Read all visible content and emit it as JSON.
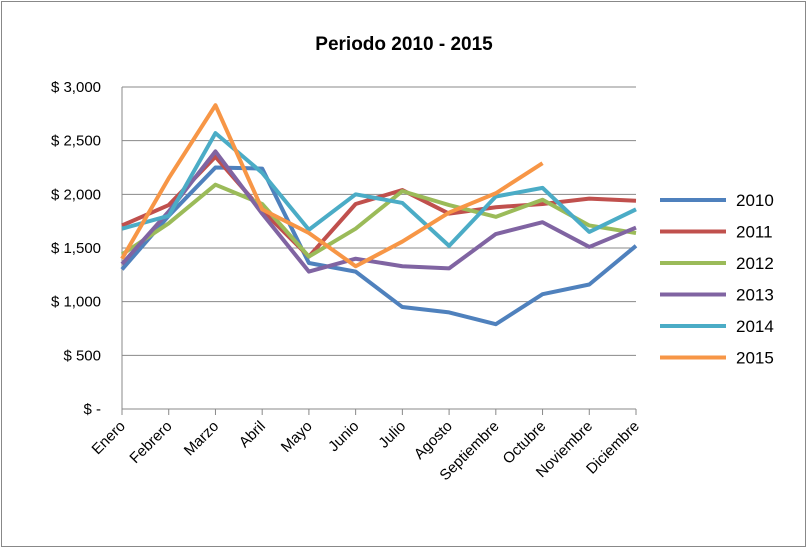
{
  "chart_data": {
    "type": "line",
    "title": "Periodo 2010 - 2015",
    "categories": [
      "Enero",
      "Febrero",
      "Marzo",
      "Abril",
      "Mayo",
      "Junio",
      "Julio",
      "Agosto",
      "Septiembre",
      "Octubre",
      "Noviembre",
      "Diciembre"
    ],
    "series": [
      {
        "name": "2010",
        "color": "#4f81bd",
        "values": [
          1300,
          1800,
          2250,
          2240,
          1360,
          1280,
          950,
          900,
          790,
          1070,
          1160,
          1520
        ]
      },
      {
        "name": "2011",
        "color": "#c0504d",
        "values": [
          1710,
          1900,
          2350,
          1850,
          1420,
          1910,
          2040,
          1820,
          1880,
          1910,
          1960,
          1940
        ]
      },
      {
        "name": "2012",
        "color": "#9bbb59",
        "values": [
          1440,
          1730,
          2090,
          1910,
          1420,
          1680,
          2030,
          1900,
          1790,
          1950,
          1710,
          1640
        ]
      },
      {
        "name": "2013",
        "color": "#8064a2",
        "values": [
          1350,
          1840,
          2400,
          1820,
          1280,
          1400,
          1330,
          1310,
          1630,
          1740,
          1510,
          1690
        ]
      },
      {
        "name": "2014",
        "color": "#4bacc6",
        "values": [
          1680,
          1800,
          2570,
          2200,
          1670,
          2000,
          1920,
          1520,
          1980,
          2060,
          1650,
          1860
        ]
      },
      {
        "name": "2015",
        "color": "#f79646",
        "values": [
          1400,
          2150,
          2830,
          1860,
          1640,
          1330,
          1560,
          1830,
          2010,
          2290,
          null,
          null
        ]
      }
    ],
    "ylim": [
      0,
      3000
    ],
    "yticks": [
      {
        "value": 0,
        "label": "$ -"
      },
      {
        "value": 500,
        "label": "$ 500"
      },
      {
        "value": 1000,
        "label": "$ 1,000"
      },
      {
        "value": 1500,
        "label": "$ 1,500"
      },
      {
        "value": 2000,
        "label": "$ 2,000"
      },
      {
        "value": 2500,
        "label": "$ 2,500"
      },
      {
        "value": 3000,
        "label": "$ 3,000"
      }
    ],
    "grid": true,
    "legend": "right"
  }
}
